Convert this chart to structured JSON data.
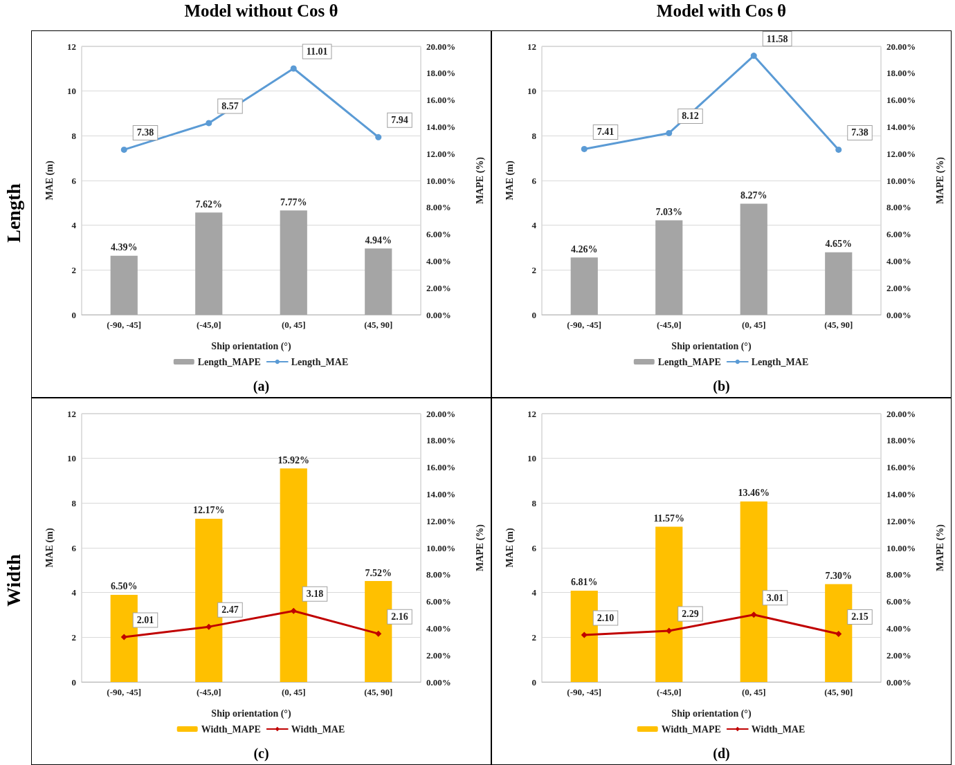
{
  "chart_data": [
    {
      "type": "bar",
      "title": "Model without Cos θ",
      "annotations": [
        "(a)",
        "Length"
      ],
      "categories": [
        "(-90, -45]",
        "(-45,0]",
        "(0, 45]",
        "(45, 90]"
      ],
      "xlabel": "Ship orientation (°)",
      "ylabel": "MAE (m)",
      "y2label": "MAPE (%)",
      "ylim": [
        0,
        12
      ],
      "yticks": [
        0,
        2,
        4,
        6,
        8,
        10,
        12
      ],
      "y2lim": [
        0,
        20
      ],
      "y2ticks": [
        {
          "value": 0,
          "label": "0.00%"
        },
        {
          "value": 2,
          "label": "2.00%"
        },
        {
          "value": 4,
          "label": "4.00%"
        },
        {
          "value": 6,
          "label": "6.00%"
        },
        {
          "value": 8,
          "label": "8.00%"
        },
        {
          "value": 10,
          "label": "10.00%"
        },
        {
          "value": 12,
          "label": "12.00%"
        },
        {
          "value": 14,
          "label": "14.00%"
        },
        {
          "value": 16,
          "label": "16.00%"
        },
        {
          "value": 18,
          "label": "18.00%"
        },
        {
          "value": 20,
          "label": "20.00%"
        }
      ],
      "grid": "y",
      "legend": "bottom",
      "marker": "circle",
      "series": [
        {
          "name": "Length_MAPE",
          "color": "#a5a5a5",
          "axis": "y2",
          "values": [
            4.39,
            7.62,
            7.77,
            4.94
          ],
          "value_labels": [
            "4.39%",
            "7.62%",
            "7.77%",
            "4.94%"
          ]
        },
        {
          "type": "line",
          "name": "Length_MAE",
          "color": "#5b9bd5",
          "values": [
            7.38,
            8.57,
            11.01,
            7.94
          ],
          "value_labels": [
            "7.38",
            "8.57",
            "11.01",
            "7.94"
          ]
        }
      ]
    },
    {
      "type": "bar",
      "title": "Model with Cos θ",
      "annotations": [
        "(b)"
      ],
      "categories": [
        "(-90, -45]",
        "(-45,0]",
        "(0, 45]",
        "(45, 90]"
      ],
      "xlabel": "Ship orientation (°)",
      "ylabel": "MAE (m)",
      "y2label": "MAPE (%)",
      "ylim": [
        0,
        12
      ],
      "yticks": [
        0,
        2,
        4,
        6,
        8,
        10,
        12
      ],
      "y2lim": [
        0,
        20
      ],
      "y2ticks": [
        {
          "value": 0,
          "label": "0.00%"
        },
        {
          "value": 2,
          "label": "2.00%"
        },
        {
          "value": 4,
          "label": "4.00%"
        },
        {
          "value": 6,
          "label": "6.00%"
        },
        {
          "value": 8,
          "label": "8.00%"
        },
        {
          "value": 10,
          "label": "10.00%"
        },
        {
          "value": 12,
          "label": "12.00%"
        },
        {
          "value": 14,
          "label": "14.00%"
        },
        {
          "value": 16,
          "label": "16.00%"
        },
        {
          "value": 18,
          "label": "18.00%"
        },
        {
          "value": 20,
          "label": "20.00%"
        }
      ],
      "grid": "y",
      "legend": "bottom",
      "marker": "circle",
      "series": [
        {
          "name": "Length_MAPE",
          "color": "#a5a5a5",
          "axis": "y2",
          "values": [
            4.26,
            7.03,
            8.27,
            4.65
          ],
          "value_labels": [
            "4.26%",
            "7.03%",
            "8.27%",
            "4.65%"
          ]
        },
        {
          "type": "line",
          "name": "Length_MAE",
          "color": "#5b9bd5",
          "values": [
            7.41,
            8.12,
            11.58,
            7.38
          ],
          "value_labels": [
            "7.41",
            "8.12",
            "11.58",
            "7.38"
          ]
        }
      ]
    },
    {
      "type": "bar",
      "annotations": [
        "(c)",
        "Width"
      ],
      "categories": [
        "(-90, -45]",
        "(-45,0]",
        "(0, 45]",
        "(45, 90]"
      ],
      "xlabel": "Ship orientation (°)",
      "ylabel": "MAE (m)",
      "y2label": "MAPE (%)",
      "ylim": [
        0,
        12
      ],
      "yticks": [
        0,
        2,
        4,
        6,
        8,
        10,
        12
      ],
      "y2lim": [
        0,
        20
      ],
      "y2ticks": [
        {
          "value": 0,
          "label": "0.00%"
        },
        {
          "value": 2,
          "label": "2.00%"
        },
        {
          "value": 4,
          "label": "4.00%"
        },
        {
          "value": 6,
          "label": "6.00%"
        },
        {
          "value": 8,
          "label": "8.00%"
        },
        {
          "value": 10,
          "label": "10.00%"
        },
        {
          "value": 12,
          "label": "12.00%"
        },
        {
          "value": 14,
          "label": "14.00%"
        },
        {
          "value": 16,
          "label": "16.00%"
        },
        {
          "value": 18,
          "label": "18.00%"
        },
        {
          "value": 20,
          "label": "20.00%"
        }
      ],
      "grid": "y",
      "legend": "bottom",
      "marker": "diamond",
      "series": [
        {
          "name": "Width_MAPE",
          "color": "#ffc000",
          "axis": "y2",
          "values": [
            6.5,
            12.17,
            15.92,
            7.52
          ],
          "value_labels": [
            "6.50%",
            "12.17%",
            "15.92%",
            "7.52%"
          ]
        },
        {
          "type": "line",
          "name": "Width_MAE",
          "color": "#c00000",
          "values": [
            2.01,
            2.47,
            3.18,
            2.16
          ],
          "value_labels": [
            "2.01",
            "2.47",
            "3.18",
            "2.16"
          ]
        }
      ]
    },
    {
      "type": "bar",
      "annotations": [
        "(d)"
      ],
      "categories": [
        "(-90, -45]",
        "(-45,0]",
        "(0, 45]",
        "(45, 90]"
      ],
      "xlabel": "Ship orientation (°)",
      "ylabel": "MAE (m)",
      "y2label": "MAPE (%)",
      "ylim": [
        0,
        12
      ],
      "yticks": [
        0,
        2,
        4,
        6,
        8,
        10,
        12
      ],
      "y2lim": [
        0,
        20
      ],
      "y2ticks": [
        {
          "value": 0,
          "label": "0.00%"
        },
        {
          "value": 2,
          "label": "2.00%"
        },
        {
          "value": 4,
          "label": "4.00%"
        },
        {
          "value": 6,
          "label": "6.00%"
        },
        {
          "value": 8,
          "label": "8.00%"
        },
        {
          "value": 10,
          "label": "10.00%"
        },
        {
          "value": 12,
          "label": "12.00%"
        },
        {
          "value": 14,
          "label": "14.00%"
        },
        {
          "value": 16,
          "label": "16.00%"
        },
        {
          "value": 18,
          "label": "18.00%"
        },
        {
          "value": 20,
          "label": "20.00%"
        }
      ],
      "grid": "y",
      "legend": "bottom",
      "marker": "diamond",
      "series": [
        {
          "name": "Width_MAPE",
          "color": "#ffc000",
          "axis": "y2",
          "values": [
            6.81,
            11.57,
            13.46,
            7.3
          ],
          "value_labels": [
            "6.81%",
            "11.57%",
            "13.46%",
            "7.30%"
          ]
        },
        {
          "type": "line",
          "name": "Width_MAE",
          "color": "#c00000",
          "values": [
            2.1,
            2.29,
            3.01,
            2.15
          ],
          "value_labels": [
            "2.10",
            "2.29",
            "3.01",
            "2.15"
          ]
        }
      ]
    }
  ]
}
